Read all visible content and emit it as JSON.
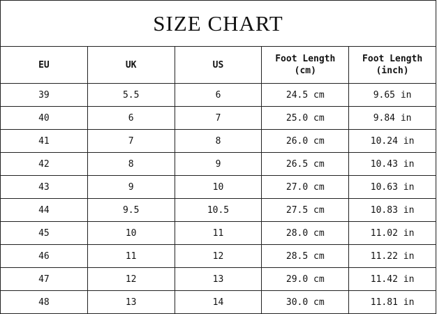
{
  "title": "SIZE CHART",
  "headers": [
    {
      "line1": "EU",
      "line2": ""
    },
    {
      "line1": "UK",
      "line2": ""
    },
    {
      "line1": "US",
      "line2": ""
    },
    {
      "line1": "Foot Length",
      "line2": "(cm)"
    },
    {
      "line1": "Foot Length",
      "line2": "(inch)"
    }
  ],
  "rows": [
    [
      "39",
      "5.5",
      "6",
      "24.5 cm",
      "9.65 in"
    ],
    [
      "40",
      "6",
      "7",
      "25.0 cm",
      "9.84 in"
    ],
    [
      "41",
      "7",
      "8",
      "26.0 cm",
      "10.24 in"
    ],
    [
      "42",
      "8",
      "9",
      "26.5 cm",
      "10.43 in"
    ],
    [
      "43",
      "9",
      "10",
      "27.0 cm",
      "10.63 in"
    ],
    [
      "44",
      "9.5",
      "10.5",
      "27.5 cm",
      "10.83 in"
    ],
    [
      "45",
      "10",
      "11",
      "28.0 cm",
      "11.02 in"
    ],
    [
      "46",
      "11",
      "12",
      "28.5 cm",
      "11.22 in"
    ],
    [
      "47",
      "12",
      "13",
      "29.0 cm",
      "11.42 in"
    ],
    [
      "48",
      "13",
      "14",
      "30.0 cm",
      "11.81 in"
    ]
  ]
}
